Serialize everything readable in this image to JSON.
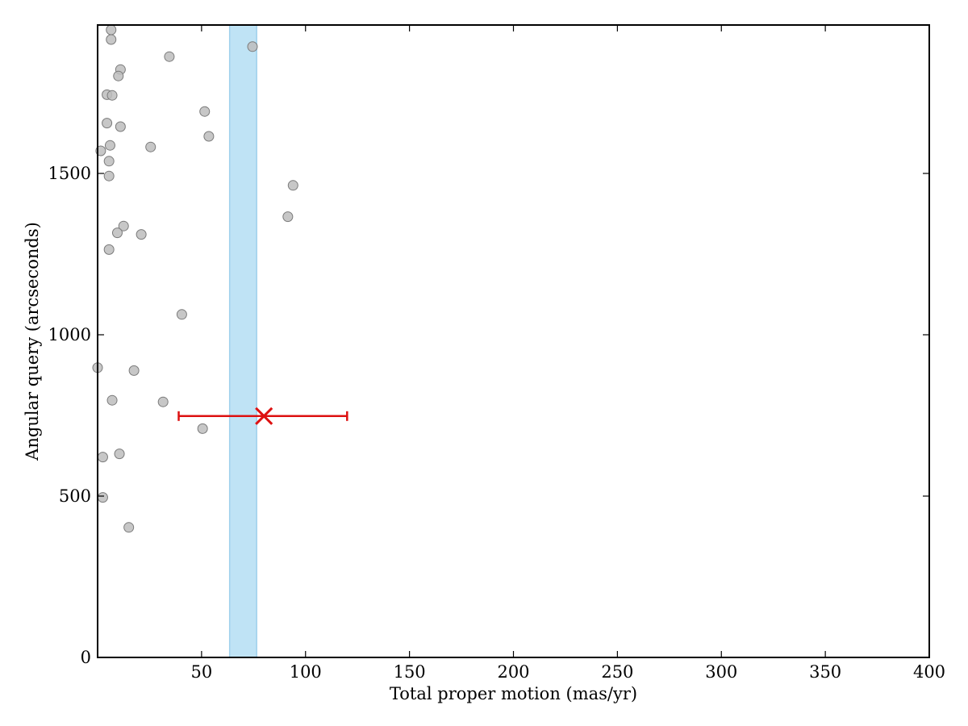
{
  "chart_data": {
    "type": "scatter",
    "xlabel": "Total proper motion (mas/yr)",
    "ylabel": "Angular query (arcseconds)",
    "xlim": [
      0,
      400
    ],
    "ylim": [
      0,
      1960
    ],
    "x_ticks": [
      50,
      100,
      150,
      200,
      250,
      300,
      350,
      400
    ],
    "y_ticks": [
      0,
      500,
      1000,
      1500
    ],
    "grid": false,
    "legend": "none",
    "colors": {
      "points": "#bdbdbd",
      "point_edge": "#7a7a7a",
      "band": "#bfe3f5",
      "band_edge": "#9fd0ec",
      "marker": "#dd1111"
    },
    "band": {
      "x_min": 63.5,
      "x_max": 76.5
    },
    "points": [
      {
        "x": 6.5,
        "y": 1945
      },
      {
        "x": 6.5,
        "y": 1915
      },
      {
        "x": 74.5,
        "y": 1893
      },
      {
        "x": 34.5,
        "y": 1862
      },
      {
        "x": 11,
        "y": 1822
      },
      {
        "x": 10,
        "y": 1802
      },
      {
        "x": 4.5,
        "y": 1744
      },
      {
        "x": 7,
        "y": 1742
      },
      {
        "x": 51.5,
        "y": 1692
      },
      {
        "x": 4.5,
        "y": 1656
      },
      {
        "x": 11,
        "y": 1645
      },
      {
        "x": 53.5,
        "y": 1615
      },
      {
        "x": 6,
        "y": 1587
      },
      {
        "x": 25.5,
        "y": 1582
      },
      {
        "x": 1.5,
        "y": 1570
      },
      {
        "x": 5.5,
        "y": 1538
      },
      {
        "x": 5.5,
        "y": 1492
      },
      {
        "x": 94,
        "y": 1463
      },
      {
        "x": 91.5,
        "y": 1366
      },
      {
        "x": 12.5,
        "y": 1337
      },
      {
        "x": 9.5,
        "y": 1316
      },
      {
        "x": 21,
        "y": 1311
      },
      {
        "x": 5.5,
        "y": 1264
      },
      {
        "x": 40.5,
        "y": 1063
      },
      {
        "x": 0,
        "y": 898
      },
      {
        "x": 17.5,
        "y": 889
      },
      {
        "x": 7,
        "y": 797
      },
      {
        "x": 31.5,
        "y": 792
      },
      {
        "x": 50.5,
        "y": 709
      },
      {
        "x": 10.5,
        "y": 631
      },
      {
        "x": 2.5,
        "y": 621
      },
      {
        "x": 2.5,
        "y": 496
      },
      {
        "x": 15,
        "y": 403
      }
    ],
    "highlight": {
      "x": 80,
      "y": 748,
      "xerr_low": 39,
      "xerr_high": 120
    }
  }
}
